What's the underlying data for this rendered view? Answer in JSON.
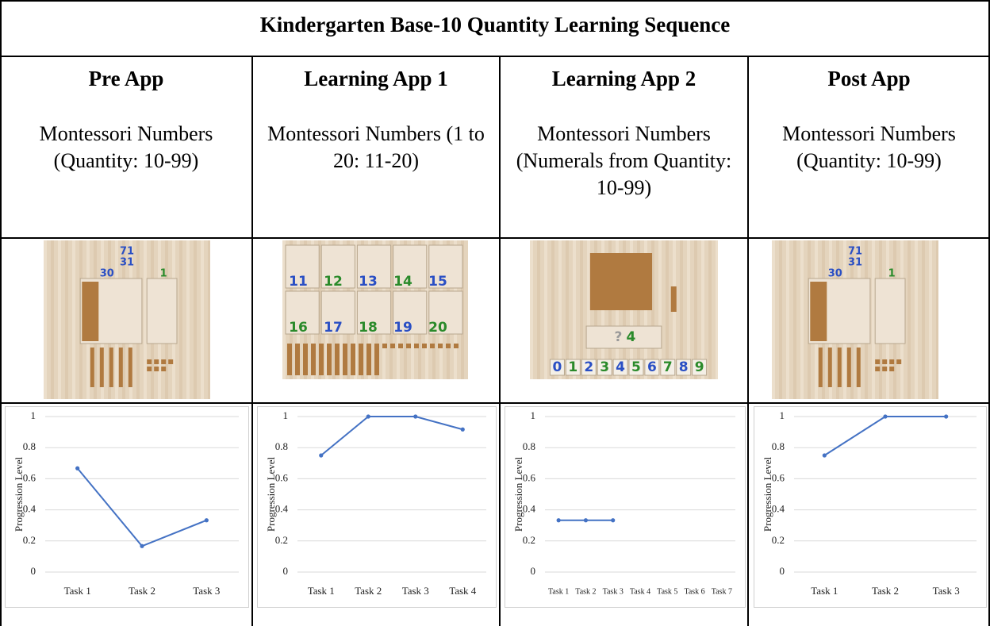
{
  "table": {
    "title": "Kindergarten Base-10 Quantity Learning Sequence",
    "columns": [
      {
        "heading": "Pre App",
        "subtitle": "Montessori Numbers (Quantity: 10-99)",
        "image_labels": [
          "71",
          "31",
          "30",
          "1"
        ]
      },
      {
        "heading": "Learning App 1",
        "subtitle": "Montessori Numbers (1 to 20: 11-20)",
        "image_labels": [
          "11",
          "12",
          "13",
          "14",
          "15",
          "16",
          "17",
          "18",
          "19",
          "20"
        ]
      },
      {
        "heading": "Learning App 2",
        "subtitle": "Montessori Numbers (Numerals from Quantity: 10-99)",
        "image_labels": [
          "?",
          "4",
          "0",
          "1",
          "2",
          "3",
          "4",
          "5",
          "6",
          "7",
          "8",
          "9"
        ]
      },
      {
        "heading": "Post App",
        "subtitle": "Montessori Numbers (Quantity: 10-99)",
        "image_labels": [
          "71",
          "31",
          "30",
          "1"
        ]
      }
    ]
  },
  "chart_data": [
    {
      "type": "line",
      "y_label": "Progression Level",
      "categories": [
        "Task 1",
        "Task 2",
        "Task 3"
      ],
      "series": [
        {
          "color": "#4472c4",
          "values": [
            0.667,
            0.167,
            0.333
          ]
        }
      ],
      "ylim": [
        0,
        1
      ],
      "yticks": [
        0,
        0.2,
        0.4,
        0.6,
        0.8,
        1
      ],
      "grid": true
    },
    {
      "type": "line",
      "y_label": "Progression Level",
      "categories": [
        "Task 1",
        "Task 2",
        "Task 3",
        "Task 4"
      ],
      "series": [
        {
          "color": "#4472c4",
          "values": [
            0.75,
            1,
            1,
            0.917
          ]
        }
      ],
      "ylim": [
        0,
        1
      ],
      "yticks": [
        0,
        0.2,
        0.4,
        0.6,
        0.8,
        1
      ],
      "grid": true
    },
    {
      "type": "line",
      "y_label": "Progression Level",
      "categories": [
        "Task 1",
        "Task 2",
        "Task 3",
        "Task 4",
        "Task 5",
        "Task 6",
        "Task 7"
      ],
      "series": [
        {
          "color": "#4472c4",
          "values": [
            0.333,
            0.333,
            0.333,
            null,
            null,
            null,
            null
          ]
        }
      ],
      "ylim": [
        0,
        1
      ],
      "yticks": [
        0,
        0.2,
        0.4,
        0.6,
        0.8,
        1
      ],
      "grid": true
    },
    {
      "type": "line",
      "y_label": "Progression Level",
      "categories": [
        "Task 1",
        "Task 2",
        "Task 3"
      ],
      "series": [
        {
          "color": "#4472c4",
          "values": [
            0.75,
            1,
            1
          ]
        }
      ],
      "ylim": [
        0,
        1
      ],
      "yticks": [
        0,
        0.2,
        0.4,
        0.6,
        0.8,
        1
      ],
      "grid": true
    }
  ]
}
